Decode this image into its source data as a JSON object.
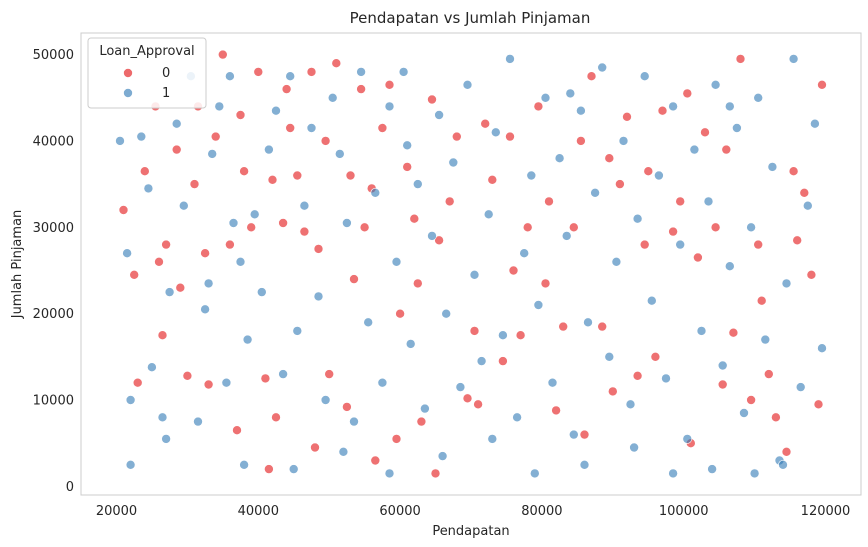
{
  "chart_data": {
    "type": "scatter",
    "title": "Pendapatan vs Jumlah Pinjaman",
    "xlabel": "Pendapatan",
    "ylabel": "Jumlah Pinjaman",
    "xlim": [
      15000,
      125000
    ],
    "ylim": [
      -1000,
      52500
    ],
    "xticks": [
      20000,
      40000,
      60000,
      80000,
      100000,
      120000
    ],
    "yticks": [
      0,
      10000,
      20000,
      30000,
      40000,
      50000
    ],
    "grid": false,
    "legend": {
      "title": "Loan_Approval",
      "placement": "top-left"
    },
    "series": [
      {
        "name": "0",
        "color": "#e41a1c",
        "points": [
          [
            21000,
            32000
          ],
          [
            22500,
            24500
          ],
          [
            24000,
            36500
          ],
          [
            26000,
            26000
          ],
          [
            27000,
            28000
          ],
          [
            28500,
            39000
          ],
          [
            30000,
            12800
          ],
          [
            31000,
            35000
          ],
          [
            32500,
            27000
          ],
          [
            34000,
            40500
          ],
          [
            35000,
            50000
          ],
          [
            36000,
            28000
          ],
          [
            37500,
            43000
          ],
          [
            39000,
            30000
          ],
          [
            40000,
            48000
          ],
          [
            41000,
            12500
          ],
          [
            42000,
            35500
          ],
          [
            43500,
            30500
          ],
          [
            44500,
            41500
          ],
          [
            45500,
            36000
          ],
          [
            46500,
            29500
          ],
          [
            47500,
            48000
          ],
          [
            48500,
            27500
          ],
          [
            50000,
            13000
          ],
          [
            51000,
            49000
          ],
          [
            52500,
            9200
          ],
          [
            53500,
            24000
          ],
          [
            55000,
            30000
          ],
          [
            56000,
            34500
          ],
          [
            57500,
            41500
          ],
          [
            58500,
            46500
          ],
          [
            59500,
            5500
          ],
          [
            61000,
            37000
          ],
          [
            62000,
            31000
          ],
          [
            63000,
            7500
          ],
          [
            64500,
            44800
          ],
          [
            65500,
            28500
          ],
          [
            67000,
            33000
          ],
          [
            68000,
            40500
          ],
          [
            69500,
            10200
          ],
          [
            70500,
            18000
          ],
          [
            72000,
            42000
          ],
          [
            73000,
            35500
          ],
          [
            74500,
            14500
          ],
          [
            75500,
            40500
          ],
          [
            77000,
            17500
          ],
          [
            78000,
            30000
          ],
          [
            79500,
            44000
          ],
          [
            80500,
            23500
          ],
          [
            82000,
            8800
          ],
          [
            83000,
            18500
          ],
          [
            84500,
            30000
          ],
          [
            85500,
            40000
          ],
          [
            87000,
            47500
          ],
          [
            88500,
            18500
          ],
          [
            89500,
            38000
          ],
          [
            91000,
            35000
          ],
          [
            92000,
            42800
          ],
          [
            93500,
            12800
          ],
          [
            94500,
            28000
          ],
          [
            96000,
            15000
          ],
          [
            97000,
            43500
          ],
          [
            98500,
            29500
          ],
          [
            99500,
            33000
          ],
          [
            100500,
            45500
          ],
          [
            102000,
            26500
          ],
          [
            103000,
            41000
          ],
          [
            104500,
            30000
          ],
          [
            105500,
            11800
          ],
          [
            107000,
            17800
          ],
          [
            108000,
            49500
          ],
          [
            109500,
            10000
          ],
          [
            110500,
            28000
          ],
          [
            112000,
            13000
          ],
          [
            113000,
            8000
          ],
          [
            114500,
            4000
          ],
          [
            115500,
            36500
          ],
          [
            117000,
            34000
          ],
          [
            118000,
            24500
          ],
          [
            119500,
            46500
          ],
          [
            23000,
            12000
          ],
          [
            25500,
            44000
          ],
          [
            29000,
            23000
          ],
          [
            33000,
            11800
          ],
          [
            37000,
            6500
          ],
          [
            41500,
            2000
          ],
          [
            44000,
            46000
          ],
          [
            48000,
            4500
          ],
          [
            53000,
            36000
          ],
          [
            56500,
            3000
          ],
          [
            60000,
            20000
          ],
          [
            65000,
            1500
          ],
          [
            71000,
            9500
          ],
          [
            76000,
            25000
          ],
          [
            81000,
            33000
          ],
          [
            86000,
            6000
          ],
          [
            90000,
            11000
          ],
          [
            95000,
            36500
          ],
          [
            101000,
            5000
          ],
          [
            106000,
            39000
          ],
          [
            111000,
            21500
          ],
          [
            116000,
            28500
          ],
          [
            119000,
            9500
          ],
          [
            26500,
            17500
          ],
          [
            31500,
            44000
          ],
          [
            38000,
            36500
          ],
          [
            42500,
            8000
          ],
          [
            49500,
            40000
          ],
          [
            54500,
            46000
          ],
          [
            62500,
            23500
          ]
        ]
      },
      {
        "name": "1",
        "color": "#377eb8",
        "points": [
          [
            20500,
            40000
          ],
          [
            21500,
            27000
          ],
          [
            22000,
            10000
          ],
          [
            23500,
            40500
          ],
          [
            24500,
            34500
          ],
          [
            25000,
            13800
          ],
          [
            26500,
            8000
          ],
          [
            27500,
            22500
          ],
          [
            28500,
            42000
          ],
          [
            29500,
            32500
          ],
          [
            30500,
            47500
          ],
          [
            31500,
            7500
          ],
          [
            32500,
            20500
          ],
          [
            33500,
            38500
          ],
          [
            34500,
            44000
          ],
          [
            35500,
            12000
          ],
          [
            36500,
            30500
          ],
          [
            37500,
            26000
          ],
          [
            38500,
            17000
          ],
          [
            39500,
            31500
          ],
          [
            40500,
            22500
          ],
          [
            41500,
            39000
          ],
          [
            42500,
            43500
          ],
          [
            43500,
            13000
          ],
          [
            44500,
            47500
          ],
          [
            45500,
            18000
          ],
          [
            46500,
            32500
          ],
          [
            47500,
            41500
          ],
          [
            48500,
            22000
          ],
          [
            49500,
            10000
          ],
          [
            50500,
            45000
          ],
          [
            51500,
            38500
          ],
          [
            52500,
            30500
          ],
          [
            53500,
            7500
          ],
          [
            54500,
            48000
          ],
          [
            55500,
            19000
          ],
          [
            56500,
            34000
          ],
          [
            57500,
            12000
          ],
          [
            58500,
            44000
          ],
          [
            59500,
            26000
          ],
          [
            60500,
            48000
          ],
          [
            61500,
            16500
          ],
          [
            62500,
            35000
          ],
          [
            63500,
            9000
          ],
          [
            64500,
            29000
          ],
          [
            65500,
            43000
          ],
          [
            66500,
            20000
          ],
          [
            67500,
            37500
          ],
          [
            68500,
            11500
          ],
          [
            69500,
            46500
          ],
          [
            70500,
            24500
          ],
          [
            71500,
            14500
          ],
          [
            72500,
            31500
          ],
          [
            73500,
            41000
          ],
          [
            74500,
            17500
          ],
          [
            75500,
            49500
          ],
          [
            76500,
            8000
          ],
          [
            77500,
            27000
          ],
          [
            78500,
            36000
          ],
          [
            79500,
            21000
          ],
          [
            80500,
            45000
          ],
          [
            81500,
            12000
          ],
          [
            82500,
            38000
          ],
          [
            83500,
            29000
          ],
          [
            84500,
            6000
          ],
          [
            85500,
            43500
          ],
          [
            86500,
            19000
          ],
          [
            87500,
            34000
          ],
          [
            88500,
            48500
          ],
          [
            89500,
            15000
          ],
          [
            90500,
            26000
          ],
          [
            91500,
            40000
          ],
          [
            92500,
            9500
          ],
          [
            93500,
            31000
          ],
          [
            94500,
            47500
          ],
          [
            95500,
            21500
          ],
          [
            96500,
            36000
          ],
          [
            97500,
            12500
          ],
          [
            98500,
            44000
          ],
          [
            99500,
            28000
          ],
          [
            100500,
            5500
          ],
          [
            101500,
            39000
          ],
          [
            102500,
            18000
          ],
          [
            103500,
            33000
          ],
          [
            104500,
            46500
          ],
          [
            105500,
            14000
          ],
          [
            106500,
            25500
          ],
          [
            107500,
            41500
          ],
          [
            108500,
            8500
          ],
          [
            109500,
            30000
          ],
          [
            110500,
            45000
          ],
          [
            111500,
            17000
          ],
          [
            112500,
            37000
          ],
          [
            113500,
            3000
          ],
          [
            114500,
            23500
          ],
          [
            115500,
            49500
          ],
          [
            116500,
            11500
          ],
          [
            117500,
            32500
          ],
          [
            118500,
            42000
          ],
          [
            119500,
            16000
          ],
          [
            22000,
            2500
          ],
          [
            27000,
            5500
          ],
          [
            33000,
            23500
          ],
          [
            38000,
            2500
          ],
          [
            45000,
            2000
          ],
          [
            52000,
            4000
          ],
          [
            58500,
            1500
          ],
          [
            66000,
            3500
          ],
          [
            73000,
            5500
          ],
          [
            79000,
            1500
          ],
          [
            86000,
            2500
          ],
          [
            93000,
            4500
          ],
          [
            98500,
            1500
          ],
          [
            104000,
            2000
          ],
          [
            110000,
            1500
          ],
          [
            114000,
            2500
          ],
          [
            36000,
            47500
          ],
          [
            61000,
            39500
          ],
          [
            84000,
            45500
          ],
          [
            106500,
            44000
          ]
        ]
      }
    ]
  }
}
